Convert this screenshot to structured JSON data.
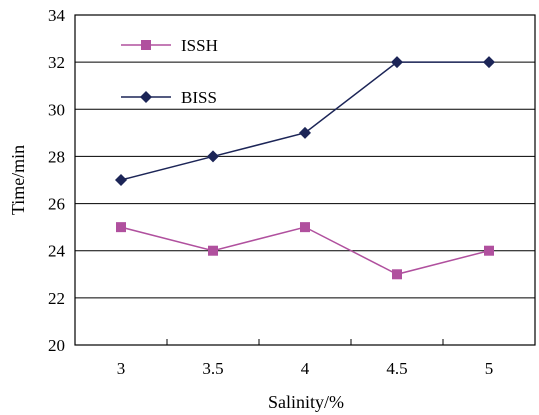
{
  "chart_data": {
    "type": "line",
    "title": "",
    "xlabel": "Salinity/%",
    "ylabel": "Time/min",
    "x": [
      "3",
      "3.5",
      "4",
      "4.5",
      "5"
    ],
    "ylim": [
      20,
      34
    ],
    "yticks": [
      "20",
      "22",
      "24",
      "26",
      "28",
      "30",
      "32",
      "34"
    ],
    "grid": true,
    "legend_position": "top-left",
    "series": [
      {
        "name": "ISSH",
        "values": [
          25,
          24,
          25,
          23,
          24
        ],
        "color": "#B0509E",
        "marker": "square"
      },
      {
        "name": "BISS",
        "values": [
          27,
          28,
          29,
          32,
          32
        ],
        "color": "#1C2557",
        "marker": "diamond"
      }
    ]
  }
}
